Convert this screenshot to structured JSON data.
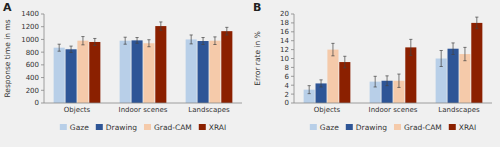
{
  "chart_data": [
    {
      "type": "bar",
      "title": "A",
      "y_label": "Response time in ms",
      "categories": [
        "Objects",
        "Indoor scenes",
        "Landscapes"
      ],
      "series": [
        {
          "name": "Gaze",
          "color": "#b8cfe8",
          "values": [
            870,
            980,
            1000
          ],
          "errors": [
            55,
            55,
            70
          ]
        },
        {
          "name": "Drawing",
          "color": "#2e5596",
          "values": [
            845,
            985,
            975
          ],
          "errors": [
            50,
            45,
            55
          ]
        },
        {
          "name": "Grad-CAM",
          "color": "#f5caaa",
          "values": [
            980,
            940,
            980
          ],
          "errors": [
            65,
            55,
            60
          ]
        },
        {
          "name": "XRAI",
          "color": "#8b2000",
          "values": [
            960,
            1210,
            1130
          ],
          "errors": [
            55,
            65,
            60
          ]
        }
      ],
      "ylim": [
        0,
        1400
      ],
      "yticks": [
        0,
        200,
        400,
        600,
        800,
        1000,
        1200,
        1400
      ],
      "grid": false,
      "legend": "bottom"
    },
    {
      "type": "bar",
      "title": "B",
      "y_label": "Error rate in %",
      "categories": [
        "Objects",
        "Indoor scenes",
        "Landscapes"
      ],
      "series": [
        {
          "name": "Gaze",
          "color": "#b8cfe8",
          "values": [
            3.0,
            4.8,
            10.0
          ],
          "errors": [
            0.9,
            1.2,
            1.8
          ]
        },
        {
          "name": "Drawing",
          "color": "#2e5596",
          "values": [
            4.4,
            5.0,
            12.2
          ],
          "errors": [
            0.8,
            1.1,
            1.3
          ]
        },
        {
          "name": "Grad-CAM",
          "color": "#f5caaa",
          "values": [
            12.0,
            5.0,
            11.0
          ],
          "errors": [
            1.4,
            1.5,
            1.5
          ]
        },
        {
          "name": "XRAI",
          "color": "#8b2000",
          "values": [
            9.2,
            12.5,
            18.0
          ],
          "errors": [
            1.3,
            1.8,
            1.3
          ]
        }
      ],
      "ylim": [
        0,
        20
      ],
      "yticks": [
        0,
        2,
        4,
        6,
        8,
        10,
        12,
        14,
        16,
        18,
        20
      ],
      "grid": false,
      "legend": "bottom"
    }
  ]
}
